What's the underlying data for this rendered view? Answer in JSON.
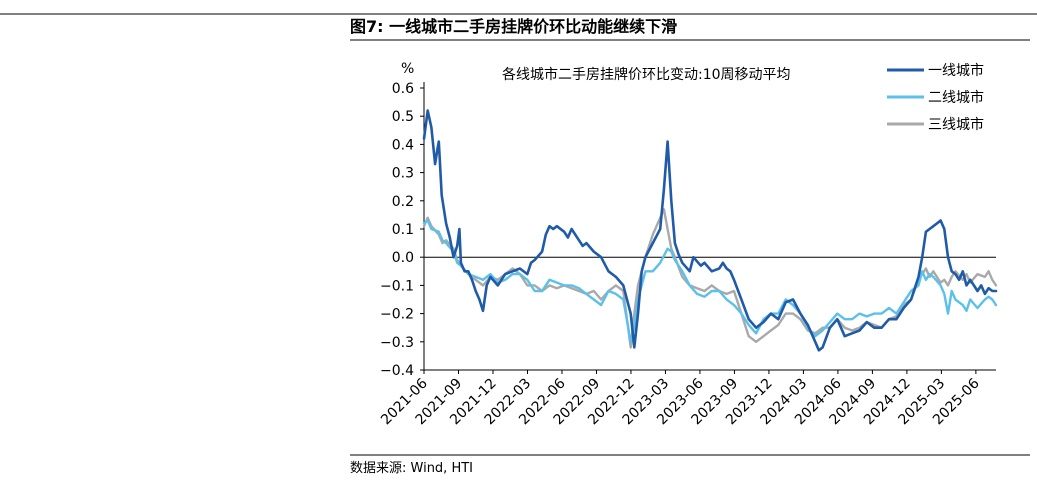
{
  "figure": {
    "title": "图7:  一线城市二手房挂牌价环比动能继续下滑",
    "source": "数据来源:  Wind,  HTI"
  },
  "chart_data": {
    "type": "line",
    "title": "各线城市二手房挂牌价环比变动:10周移动平均",
    "ylabel": "%",
    "xlabel": "",
    "ylim": [
      -0.4,
      0.6
    ],
    "yticks": [
      "0.6",
      "0.5",
      "0.4",
      "0.3",
      "0.2",
      "0.1",
      "0.0",
      "−0.1",
      "−0.2",
      "−0.3",
      "−0.4"
    ],
    "ytick_values": [
      0.6,
      0.5,
      0.4,
      0.3,
      0.2,
      0.1,
      0.0,
      -0.1,
      -0.2,
      -0.3,
      -0.4
    ],
    "x_start": "2021-06",
    "x_end": "2025-08",
    "xticks": [
      "2021-06",
      "2021-09",
      "2021-12",
      "2022-03",
      "2022-06",
      "2022-09",
      "2022-12",
      "2023-03",
      "2023-06",
      "2023-09",
      "2023-12",
      "2024-03",
      "2024-06",
      "2024-09",
      "2024-12",
      "2025-03",
      "2025-06"
    ],
    "legend_position": "top-right",
    "series": [
      {
        "name": "一线城市",
        "color": "#1f5ba8",
        "points": [
          [
            0.0,
            0.42
          ],
          [
            0.25,
            0.52
          ],
          [
            0.5,
            0.46
          ],
          [
            0.75,
            0.33
          ],
          [
            0.9,
            0.38
          ],
          [
            1.0,
            0.41
          ],
          [
            1.2,
            0.22
          ],
          [
            1.5,
            0.12
          ],
          [
            1.75,
            0.07
          ],
          [
            2.0,
            0.0
          ],
          [
            2.25,
            0.04
          ],
          [
            2.4,
            0.1
          ],
          [
            2.5,
            -0.02
          ],
          [
            2.75,
            -0.05
          ],
          [
            3.0,
            -0.05
          ],
          [
            3.25,
            -0.08
          ],
          [
            3.5,
            -0.12
          ],
          [
            3.75,
            -0.15
          ],
          [
            4.0,
            -0.19
          ],
          [
            4.25,
            -0.1
          ],
          [
            4.5,
            -0.07
          ],
          [
            5.0,
            -0.1
          ],
          [
            5.5,
            -0.06
          ],
          [
            6.0,
            -0.05
          ],
          [
            6.5,
            -0.04
          ],
          [
            7.0,
            -0.06
          ],
          [
            7.25,
            -0.02
          ],
          [
            7.5,
            -0.01
          ],
          [
            8.0,
            0.02
          ],
          [
            8.25,
            0.08
          ],
          [
            8.5,
            0.11
          ],
          [
            8.75,
            0.1
          ],
          [
            9.0,
            0.11
          ],
          [
            9.5,
            0.09
          ],
          [
            9.75,
            0.07
          ],
          [
            10.0,
            0.1
          ],
          [
            10.5,
            0.06
          ],
          [
            10.75,
            0.04
          ],
          [
            11.0,
            0.05
          ],
          [
            11.5,
            0.02
          ],
          [
            12.0,
            0.0
          ],
          [
            12.5,
            -0.05
          ],
          [
            13.0,
            -0.07
          ],
          [
            13.5,
            -0.1
          ],
          [
            14.0,
            -0.2
          ],
          [
            14.25,
            -0.32
          ],
          [
            14.5,
            -0.2
          ],
          [
            14.75,
            -0.05
          ],
          [
            15.0,
            0.0
          ],
          [
            15.5,
            0.05
          ],
          [
            16.0,
            0.1
          ],
          [
            16.25,
            0.24
          ],
          [
            16.5,
            0.41
          ],
          [
            16.75,
            0.2
          ],
          [
            17.0,
            0.05
          ],
          [
            17.25,
            0.01
          ],
          [
            17.5,
            -0.02
          ],
          [
            18.0,
            -0.05
          ],
          [
            18.25,
            0.0
          ],
          [
            18.75,
            -0.03
          ],
          [
            19.0,
            -0.02
          ],
          [
            19.5,
            -0.05
          ],
          [
            20.0,
            -0.04
          ],
          [
            20.25,
            -0.02
          ],
          [
            20.5,
            -0.04
          ],
          [
            20.75,
            -0.05
          ],
          [
            21.0,
            -0.08
          ],
          [
            21.5,
            -0.15
          ],
          [
            22.0,
            -0.22
          ],
          [
            22.5,
            -0.25
          ],
          [
            23.0,
            -0.23
          ],
          [
            23.5,
            -0.2
          ],
          [
            24.0,
            -0.22
          ],
          [
            24.5,
            -0.16
          ],
          [
            25.0,
            -0.15
          ],
          [
            25.5,
            -0.2
          ],
          [
            26.0,
            -0.24
          ],
          [
            26.5,
            -0.3
          ],
          [
            26.75,
            -0.33
          ],
          [
            27.0,
            -0.32
          ],
          [
            27.5,
            -0.25
          ],
          [
            28.0,
            -0.22
          ],
          [
            28.5,
            -0.28
          ],
          [
            29.0,
            -0.27
          ],
          [
            29.5,
            -0.26
          ],
          [
            30.0,
            -0.23
          ],
          [
            30.5,
            -0.25
          ],
          [
            31.0,
            -0.25
          ],
          [
            31.5,
            -0.22
          ],
          [
            32.0,
            -0.22
          ],
          [
            32.5,
            -0.18
          ],
          [
            33.0,
            -0.15
          ],
          [
            33.5,
            -0.07
          ],
          [
            33.75,
            0.0
          ],
          [
            34.0,
            0.09
          ],
          [
            34.25,
            0.1
          ],
          [
            34.5,
            0.11
          ],
          [
            34.75,
            0.12
          ],
          [
            35.0,
            0.13
          ],
          [
            35.25,
            0.1
          ],
          [
            35.5,
            0.0
          ],
          [
            35.75,
            -0.05
          ],
          [
            36.0,
            -0.06
          ],
          [
            36.25,
            -0.08
          ],
          [
            36.5,
            -0.05
          ],
          [
            36.75,
            -0.1
          ],
          [
            37.0,
            -0.08
          ],
          [
            37.25,
            -0.1
          ],
          [
            37.5,
            -0.12
          ],
          [
            37.75,
            -0.1
          ],
          [
            38.0,
            -0.13
          ],
          [
            38.25,
            -0.11
          ],
          [
            38.5,
            -0.12
          ],
          [
            38.75,
            -0.12
          ]
        ]
      },
      {
        "name": "二线城市",
        "color": "#5bc0ea",
        "points": [
          [
            0.0,
            0.12
          ],
          [
            0.25,
            0.13
          ],
          [
            0.5,
            0.1
          ],
          [
            1.0,
            0.09
          ],
          [
            1.25,
            0.06
          ],
          [
            1.5,
            0.05
          ],
          [
            2.0,
            0.02
          ],
          [
            2.25,
            -0.02
          ],
          [
            2.5,
            -0.03
          ],
          [
            3.0,
            -0.06
          ],
          [
            3.5,
            -0.07
          ],
          [
            4.0,
            -0.08
          ],
          [
            4.5,
            -0.06
          ],
          [
            5.0,
            -0.09
          ],
          [
            5.5,
            -0.08
          ],
          [
            6.0,
            -0.06
          ],
          [
            6.5,
            -0.06
          ],
          [
            7.0,
            -0.08
          ],
          [
            7.5,
            -0.12
          ],
          [
            8.0,
            -0.12
          ],
          [
            8.5,
            -0.08
          ],
          [
            9.0,
            -0.09
          ],
          [
            9.5,
            -0.1
          ],
          [
            10.0,
            -0.1
          ],
          [
            10.5,
            -0.11
          ],
          [
            11.0,
            -0.13
          ],
          [
            11.5,
            -0.15
          ],
          [
            12.0,
            -0.17
          ],
          [
            12.5,
            -0.12
          ],
          [
            13.0,
            -0.13
          ],
          [
            13.5,
            -0.15
          ],
          [
            14.0,
            -0.3
          ],
          [
            14.25,
            -0.25
          ],
          [
            14.5,
            -0.15
          ],
          [
            15.0,
            -0.05
          ],
          [
            15.5,
            -0.05
          ],
          [
            16.0,
            -0.02
          ],
          [
            16.5,
            0.03
          ],
          [
            16.75,
            0.02
          ],
          [
            17.0,
            -0.01
          ],
          [
            17.5,
            -0.05
          ],
          [
            18.0,
            -0.1
          ],
          [
            18.5,
            -0.13
          ],
          [
            19.0,
            -0.14
          ],
          [
            19.5,
            -0.12
          ],
          [
            20.0,
            -0.12
          ],
          [
            20.5,
            -0.15
          ],
          [
            21.0,
            -0.17
          ],
          [
            21.5,
            -0.2
          ],
          [
            22.0,
            -0.24
          ],
          [
            22.5,
            -0.27
          ],
          [
            23.0,
            -0.22
          ],
          [
            23.5,
            -0.2
          ],
          [
            24.0,
            -0.2
          ],
          [
            24.5,
            -0.15
          ],
          [
            25.0,
            -0.17
          ],
          [
            25.5,
            -0.2
          ],
          [
            26.0,
            -0.25
          ],
          [
            26.5,
            -0.28
          ],
          [
            27.0,
            -0.26
          ],
          [
            27.5,
            -0.23
          ],
          [
            28.0,
            -0.2
          ],
          [
            28.5,
            -0.22
          ],
          [
            29.0,
            -0.22
          ],
          [
            29.5,
            -0.2
          ],
          [
            30.0,
            -0.21
          ],
          [
            30.5,
            -0.2
          ],
          [
            31.0,
            -0.2
          ],
          [
            31.5,
            -0.18
          ],
          [
            32.0,
            -0.2
          ],
          [
            32.5,
            -0.16
          ],
          [
            33.0,
            -0.12
          ],
          [
            33.5,
            -0.1
          ],
          [
            33.75,
            -0.05
          ],
          [
            34.0,
            -0.08
          ],
          [
            34.25,
            -0.06
          ],
          [
            34.5,
            -0.07
          ],
          [
            35.0,
            -0.1
          ],
          [
            35.25,
            -0.13
          ],
          [
            35.5,
            -0.2
          ],
          [
            35.75,
            -0.12
          ],
          [
            36.0,
            -0.15
          ],
          [
            36.5,
            -0.17
          ],
          [
            36.75,
            -0.19
          ],
          [
            37.0,
            -0.15
          ],
          [
            37.5,
            -0.18
          ],
          [
            38.0,
            -0.15
          ],
          [
            38.25,
            -0.14
          ],
          [
            38.5,
            -0.15
          ],
          [
            38.75,
            -0.17
          ]
        ]
      },
      {
        "name": "三线城市",
        "color": "#a9a9a9",
        "points": [
          [
            0.0,
            0.11
          ],
          [
            0.25,
            0.14
          ],
          [
            0.5,
            0.11
          ],
          [
            1.0,
            0.08
          ],
          [
            1.25,
            0.05
          ],
          [
            1.5,
            0.06
          ],
          [
            2.0,
            0.03
          ],
          [
            2.25,
            -0.01
          ],
          [
            2.5,
            -0.03
          ],
          [
            3.0,
            -0.06
          ],
          [
            3.5,
            -0.08
          ],
          [
            4.0,
            -0.1
          ],
          [
            4.5,
            -0.07
          ],
          [
            5.0,
            -0.08
          ],
          [
            5.5,
            -0.06
          ],
          [
            6.0,
            -0.04
          ],
          [
            6.5,
            -0.06
          ],
          [
            7.0,
            -0.1
          ],
          [
            7.5,
            -0.1
          ],
          [
            8.0,
            -0.12
          ],
          [
            8.5,
            -0.1
          ],
          [
            9.0,
            -0.11
          ],
          [
            9.5,
            -0.1
          ],
          [
            10.0,
            -0.11
          ],
          [
            10.5,
            -0.12
          ],
          [
            11.0,
            -0.13
          ],
          [
            11.5,
            -0.12
          ],
          [
            12.0,
            -0.15
          ],
          [
            12.5,
            -0.12
          ],
          [
            13.0,
            -0.1
          ],
          [
            13.5,
            -0.12
          ],
          [
            14.0,
            -0.32
          ],
          [
            14.25,
            -0.2
          ],
          [
            14.5,
            -0.1
          ],
          [
            15.0,
            0.0
          ],
          [
            15.5,
            0.08
          ],
          [
            16.0,
            0.14
          ],
          [
            16.25,
            0.17
          ],
          [
            16.5,
            0.1
          ],
          [
            16.75,
            0.03
          ],
          [
            17.0,
            0.0
          ],
          [
            17.5,
            -0.07
          ],
          [
            18.0,
            -0.1
          ],
          [
            18.5,
            -0.11
          ],
          [
            19.0,
            -0.12
          ],
          [
            19.5,
            -0.1
          ],
          [
            20.0,
            -0.12
          ],
          [
            20.5,
            -0.13
          ],
          [
            21.0,
            -0.12
          ],
          [
            21.5,
            -0.2
          ],
          [
            22.0,
            -0.28
          ],
          [
            22.5,
            -0.3
          ],
          [
            23.0,
            -0.28
          ],
          [
            23.5,
            -0.26
          ],
          [
            24.0,
            -0.24
          ],
          [
            24.5,
            -0.2
          ],
          [
            25.0,
            -0.2
          ],
          [
            25.5,
            -0.22
          ],
          [
            26.0,
            -0.26
          ],
          [
            26.5,
            -0.27
          ],
          [
            27.0,
            -0.25
          ],
          [
            27.5,
            -0.25
          ],
          [
            28.0,
            -0.22
          ],
          [
            28.5,
            -0.25
          ],
          [
            29.0,
            -0.26
          ],
          [
            29.5,
            -0.25
          ],
          [
            30.0,
            -0.23
          ],
          [
            30.5,
            -0.24
          ],
          [
            31.0,
            -0.25
          ],
          [
            31.5,
            -0.22
          ],
          [
            32.0,
            -0.21
          ],
          [
            32.5,
            -0.17
          ],
          [
            33.0,
            -0.15
          ],
          [
            33.5,
            -0.08
          ],
          [
            33.75,
            -0.06
          ],
          [
            34.0,
            -0.04
          ],
          [
            34.25,
            -0.07
          ],
          [
            34.5,
            -0.05
          ],
          [
            35.0,
            -0.09
          ],
          [
            35.25,
            -0.08
          ],
          [
            35.5,
            -0.1
          ],
          [
            35.75,
            -0.07
          ],
          [
            36.0,
            -0.05
          ],
          [
            36.5,
            -0.08
          ],
          [
            36.75,
            -0.06
          ],
          [
            37.0,
            -0.09
          ],
          [
            37.5,
            -0.06
          ],
          [
            38.0,
            -0.07
          ],
          [
            38.25,
            -0.05
          ],
          [
            38.5,
            -0.08
          ],
          [
            38.75,
            -0.1
          ]
        ]
      }
    ]
  }
}
